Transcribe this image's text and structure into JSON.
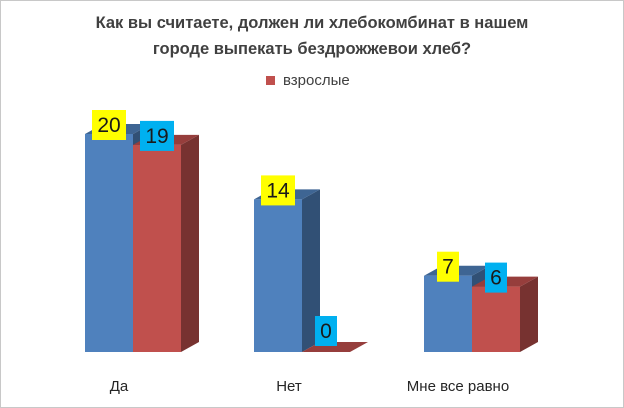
{
  "chart_data": {
    "type": "bar",
    "title_lines": [
      "Как вы считаете, должен ли хлебокомбинат в нашем",
      "городе выпекать бездрожжевои хлеб?"
    ],
    "categories": [
      "Да",
      "Нет",
      "Мне все равно"
    ],
    "series": [
      {
        "values": [
          20,
          14,
          7
        ],
        "color": "#4f81bd",
        "label_bg": "#ffff00"
      },
      {
        "name": "взрослые",
        "values": [
          19,
          0,
          6
        ],
        "color": "#c0504d",
        "label_bg": "#00b0f0"
      }
    ],
    "ylim": [
      0,
      20
    ],
    "grid": false,
    "legend_position": "top",
    "style": "3d-clustered-column"
  }
}
